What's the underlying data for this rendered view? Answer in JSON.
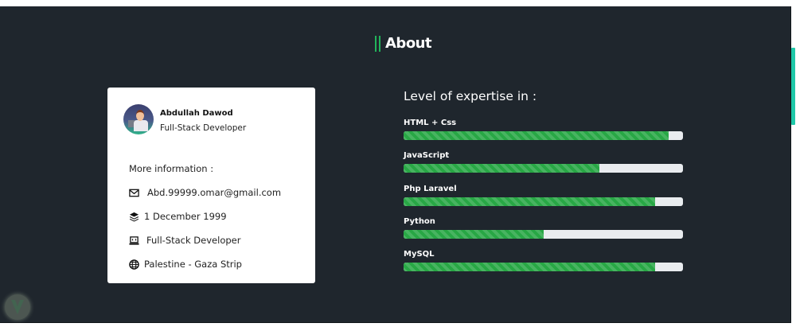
{
  "section": {
    "title": "About"
  },
  "profile": {
    "name": "Abdullah Dawod",
    "role": "Full-Stack Developer",
    "more_info_label": "More information :",
    "info": [
      {
        "icon": "envelope-icon",
        "text": "Abd.99999.omar@gmail.com"
      },
      {
        "icon": "layers-icon",
        "text": "1 December 1999"
      },
      {
        "icon": "laptop-code-icon",
        "text": "Full-Stack Developer"
      },
      {
        "icon": "globe-icon",
        "text": "Palestine - Gaza Strip"
      }
    ]
  },
  "expertise": {
    "title": "Level of expertise in :",
    "bar_color": "#28a745",
    "skills": [
      {
        "label": "HTML + Css",
        "percent": 95
      },
      {
        "label": "JavaScript",
        "percent": 70
      },
      {
        "label": "Php Laravel",
        "percent": 90
      },
      {
        "label": "Python",
        "percent": 50
      },
      {
        "label": "MySQL",
        "percent": 90
      }
    ]
  },
  "colors": {
    "background": "#1f262d",
    "accent": "#22b35a",
    "scrollbar": "#1ec8a8"
  }
}
